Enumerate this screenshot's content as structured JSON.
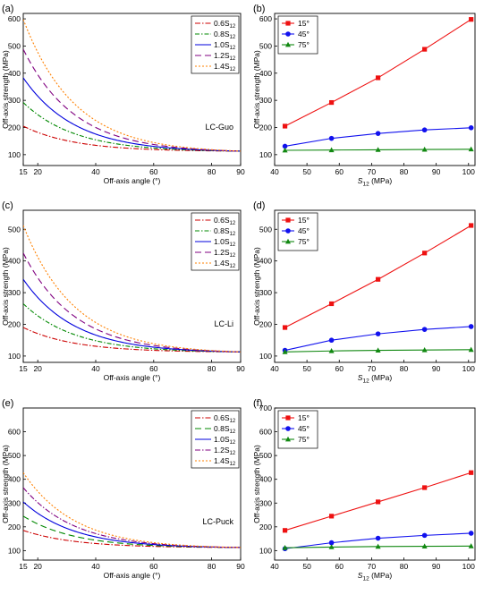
{
  "chart_data": [
    {
      "panel": "(a)",
      "type": "line",
      "annotation": "LC-Guo",
      "xlabel": "Off-axis angle (°)",
      "ylabel": "Off-axis strength (MPa)",
      "xlim": [
        15,
        90
      ],
      "ylim": [
        60,
        620
      ],
      "xticks": [
        15,
        20,
        40,
        60,
        80,
        90
      ],
      "yticks": [
        100,
        200,
        300,
        400,
        500,
        600
      ],
      "legend_position": "top-right",
      "series": [
        {
          "name": "0.6S",
          "sub": "12",
          "color": "#cc0000",
          "dash": "6,2,1.5,2",
          "y15": 205
        },
        {
          "name": "0.8S",
          "sub": "12",
          "color": "#008800",
          "dash": "5,2,1.5,2",
          "y15": 292
        },
        {
          "name": "1.0S",
          "sub": "12",
          "color": "#0000dd",
          "dash": "",
          "y15": 383
        },
        {
          "name": "1.2S",
          "sub": "12",
          "color": "#800080",
          "dash": "7,4",
          "y15": 488
        },
        {
          "name": "1.4S",
          "sub": "12",
          "color": "#ff8000",
          "dash": "2,2",
          "y15": 598
        }
      ]
    },
    {
      "panel": "(b)",
      "type": "line",
      "annotation": "",
      "xlabel": "S12 (MPa)",
      "ylabel": "Off-axis strength (MPa)",
      "xlim": [
        40,
        102
      ],
      "ylim": [
        60,
        620
      ],
      "xticks": [
        40,
        50,
        60,
        70,
        80,
        90,
        100
      ],
      "yticks": [
        100,
        200,
        300,
        400,
        500,
        600
      ],
      "legend_position": "top-left",
      "x": [
        43.2,
        57.6,
        72,
        86.4,
        100.8
      ],
      "series": [
        {
          "name": "15°",
          "color": "#ee1111",
          "marker": "square",
          "values": [
            205,
            292,
            383,
            488,
            598
          ]
        },
        {
          "name": "45°",
          "color": "#1111ee",
          "marker": "circle",
          "values": [
            131,
            160,
            178,
            191,
            199
          ]
        },
        {
          "name": "75°",
          "color": "#118811",
          "marker": "triangle",
          "values": [
            116,
            117,
            118,
            119,
            120
          ]
        }
      ]
    },
    {
      "panel": "(c)",
      "type": "line",
      "annotation": "LC-Li",
      "xlabel": "Off-axis angle (°)",
      "ylabel": "Off-axis strength (MPa)",
      "xlim": [
        15,
        90
      ],
      "ylim": [
        80,
        560
      ],
      "xticks": [
        15,
        20,
        40,
        60,
        80,
        90
      ],
      "yticks": [
        100,
        200,
        300,
        400,
        500
      ],
      "legend_position": "top-right",
      "series": [
        {
          "name": "0.6S",
          "sub": "12",
          "color": "#cc0000",
          "dash": "6,2,1.5,2",
          "y15": 190
        },
        {
          "name": "0.8S",
          "sub": "12",
          "color": "#008800",
          "dash": "5,2,1.5,2",
          "y15": 265
        },
        {
          "name": "1.0S",
          "sub": "12",
          "color": "#0000dd",
          "dash": "",
          "y15": 342
        },
        {
          "name": "1.2S",
          "sub": "12",
          "color": "#800080",
          "dash": "7,4",
          "y15": 425
        },
        {
          "name": "1.4S",
          "sub": "12",
          "color": "#ff8000",
          "dash": "2,2",
          "y15": 512
        }
      ]
    },
    {
      "panel": "(d)",
      "type": "line",
      "annotation": "",
      "xlabel": "S12 (MPa)",
      "ylabel": "Off-axis strength (MPa)",
      "xlim": [
        40,
        102
      ],
      "ylim": [
        80,
        560
      ],
      "xticks": [
        40,
        50,
        60,
        70,
        80,
        90,
        100
      ],
      "yticks": [
        100,
        200,
        300,
        400,
        500
      ],
      "legend_position": "top-left",
      "x": [
        43.2,
        57.6,
        72,
        86.4,
        100.8
      ],
      "series": [
        {
          "name": "15°",
          "color": "#ee1111",
          "marker": "square",
          "values": [
            190,
            265,
            342,
            425,
            512
          ]
        },
        {
          "name": "45°",
          "color": "#1111ee",
          "marker": "circle",
          "values": [
            118,
            150,
            170,
            184,
            193
          ]
        },
        {
          "name": "75°",
          "color": "#118811",
          "marker": "triangle",
          "values": [
            113,
            116,
            118,
            119,
            120
          ]
        }
      ]
    },
    {
      "panel": "(e)",
      "type": "line",
      "annotation": "LC-Puck",
      "xlabel": "Off-axis angle (°)",
      "ylabel": "Off-axis strength (MPa)",
      "xlim": [
        15,
        90
      ],
      "ylim": [
        60,
        700
      ],
      "xticks": [
        15,
        20,
        40,
        60,
        80,
        90
      ],
      "yticks": [
        100,
        200,
        300,
        400,
        500,
        600
      ],
      "legend_position": "top-right",
      "series": [
        {
          "name": "0.6S",
          "sub": "12",
          "color": "#cc0000",
          "dash": "6,2,1.5,2",
          "y15": 185
        },
        {
          "name": "0.8S",
          "sub": "12",
          "color": "#008800",
          "dash": "7,4",
          "y15": 245
        },
        {
          "name": "1.0S",
          "sub": "12",
          "color": "#0000dd",
          "dash": "",
          "y15": 305
        },
        {
          "name": "1.2S",
          "sub": "12",
          "color": "#800080",
          "dash": "6,2,1.5,2",
          "y15": 365
        },
        {
          "name": "1.4S",
          "sub": "12",
          "color": "#ff8000",
          "dash": "2,2",
          "y15": 428
        }
      ]
    },
    {
      "panel": "(f)",
      "type": "line",
      "annotation": "",
      "xlabel": "S12 (MPa)",
      "ylabel": "Off-axis strength (MPa)",
      "xlim": [
        40,
        102
      ],
      "ylim": [
        60,
        700
      ],
      "xticks": [
        40,
        50,
        60,
        70,
        80,
        90,
        100
      ],
      "yticks": [
        100,
        200,
        300,
        400,
        500,
        600,
        700
      ],
      "legend_position": "top-left",
      "x": [
        43.2,
        57.6,
        72,
        86.4,
        100.8
      ],
      "series": [
        {
          "name": "15°",
          "color": "#ee1111",
          "marker": "square",
          "values": [
            185,
            245,
            305,
            365,
            428
          ]
        },
        {
          "name": "45°",
          "color": "#1111ee",
          "marker": "circle",
          "values": [
            108,
            133,
            152,
            164,
            173
          ]
        },
        {
          "name": "75°",
          "color": "#118811",
          "marker": "triangle",
          "values": [
            112,
            115,
            117,
            118,
            119
          ]
        }
      ]
    }
  ],
  "asymptote_90deg": 113
}
